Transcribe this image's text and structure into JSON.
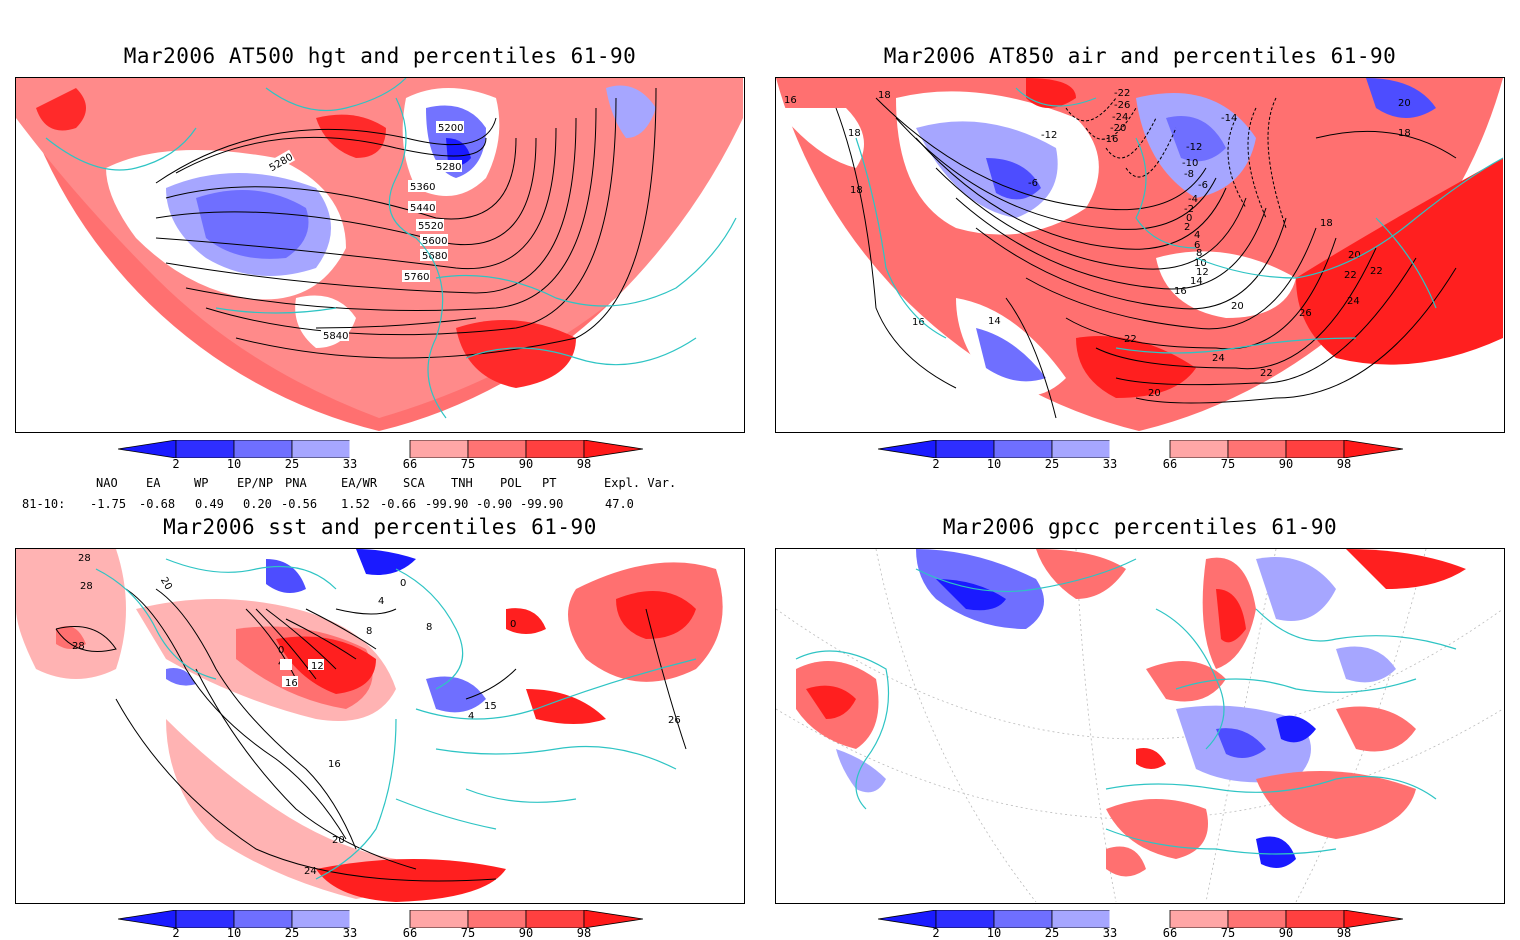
{
  "panels": [
    {
      "id": "p1",
      "title": "Mar2006 AT500 hgt and percentiles 61-90",
      "contour_labels": [
        "5200",
        "5280",
        "5280",
        "5360",
        "5440",
        "5520",
        "5600",
        "5680",
        "5760",
        "5840"
      ]
    },
    {
      "id": "p2",
      "title": "Mar2006 AT850 air and percentiles 61-90",
      "contour_labels": [
        "16",
        "18",
        "18",
        "18",
        "20",
        "18",
        "-22",
        "-26",
        "-24",
        "-20",
        "-16",
        "-12",
        "-14",
        "-12",
        "-10",
        "-8",
        "-6",
        "-6",
        "-4",
        "-2",
        "0",
        "2",
        "4",
        "6",
        "8",
        "10",
        "12",
        "14",
        "16",
        "18",
        "20",
        "22",
        "24",
        "22",
        "26",
        "22",
        "24",
        "22",
        "20",
        "20",
        "14",
        "16"
      ]
    },
    {
      "id": "p3",
      "title": "Mar2006 sst and percentiles 61-90",
      "contour_labels": [
        "28",
        "28",
        "28",
        "20",
        "0",
        "4",
        "8",
        "12",
        "16",
        "0",
        "4",
        "8",
        "0",
        "4",
        "15",
        "16",
        "20",
        "24",
        "26",
        "28"
      ]
    },
    {
      "id": "p4",
      "title": "Mar2006 gpcc percentiles 61-90",
      "contour_labels": []
    }
  ],
  "colorbar": {
    "labels": [
      "2",
      "10",
      "25",
      "33",
      "66",
      "75",
      "90",
      "98"
    ],
    "colors": {
      "b1": "#1a1aff",
      "b2": "#4d4dff",
      "b3": "#7373ff",
      "b4": "#a6a6ff",
      "w": "#ffffff",
      "r1": "#ffa6a6",
      "r2": "#ff7373",
      "r3": "#ff4d4d",
      "r4": "#ff1a1a"
    }
  },
  "teleconnections": {
    "header": [
      "NAO",
      "EA",
      "WP",
      "EP/NP",
      "PNA",
      "EA/WR",
      "SCA",
      "TNH",
      "POL",
      "PT",
      "Expl. Var."
    ],
    "row_label": "81-10:",
    "values": [
      "-1.75",
      "-0.68",
      "0.49",
      "0.20",
      "-0.56",
      "1.52",
      "-0.66",
      "-99.90",
      "-0.90",
      "-99.90",
      "47.0"
    ]
  },
  "colors": {
    "coast": "#2ec4c4",
    "red_light": "#ffb3b3",
    "red_mid": "#ff7070",
    "red_dark": "#ff1f1f",
    "blue_light": "#a6a6ff",
    "blue_mid": "#6f6fff",
    "blue_dark": "#1a1aff"
  }
}
